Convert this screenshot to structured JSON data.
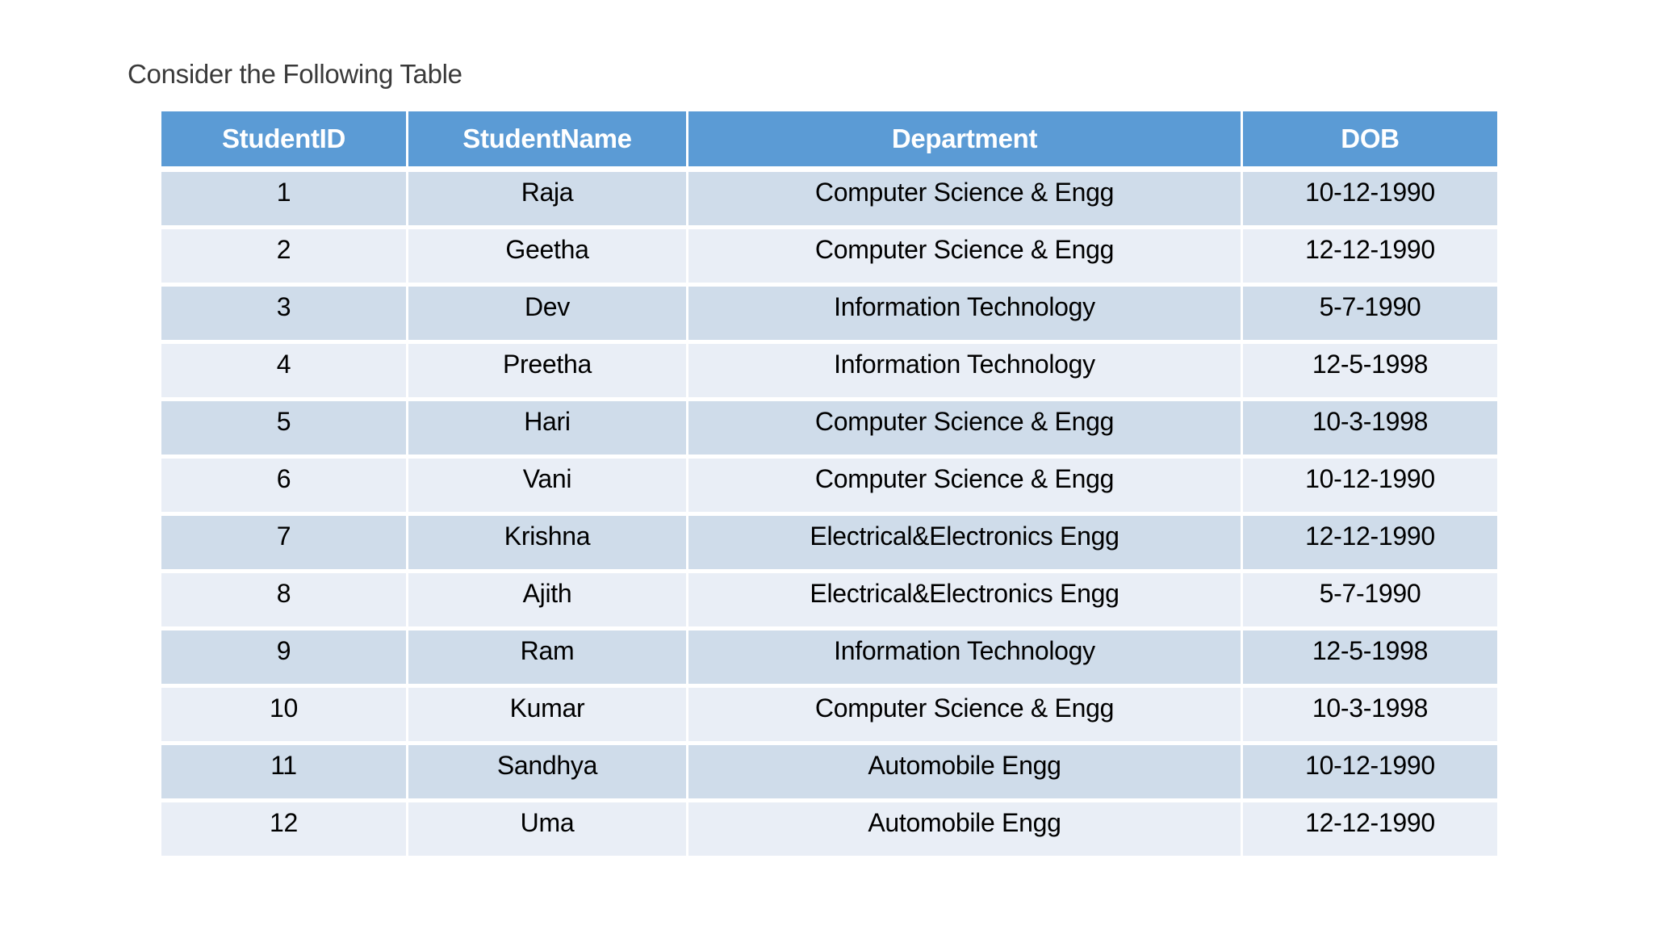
{
  "page": {
    "title": "Consider the Following Table",
    "background": "#ffffff"
  },
  "table": {
    "columns": [
      "StudentID",
      "StudentName",
      "Department",
      "DOB"
    ],
    "rows": [
      [
        "1",
        "Raja",
        "Computer Science & Engg",
        "10-12-1990"
      ],
      [
        "2",
        "Geetha",
        "Computer Science & Engg",
        "12-12-1990"
      ],
      [
        "3",
        "Dev",
        "Information Technology",
        "5-7-1990"
      ],
      [
        "4",
        "Preetha",
        "Information Technology",
        "12-5-1998"
      ],
      [
        "5",
        "Hari",
        "Computer Science & Engg",
        "10-3-1998"
      ],
      [
        "6",
        "Vani",
        "Computer Science & Engg",
        "10-12-1990"
      ],
      [
        "7",
        "Krishna",
        "Electrical&Electronics Engg",
        "12-12-1990"
      ],
      [
        "8",
        "Ajith",
        "Electrical&Electronics Engg",
        "5-7-1990"
      ],
      [
        "9",
        "Ram",
        "Information Technology",
        "12-5-1998"
      ],
      [
        "10",
        "Kumar",
        "Computer Science & Engg",
        "10-3-1998"
      ],
      [
        "11",
        "Sandhya",
        "Automobile Engg",
        "10-12-1990"
      ],
      [
        "12",
        "Uma",
        "Automobile Engg",
        "12-12-1990"
      ]
    ],
    "colors": {
      "header_bg": "#5b9bd5",
      "header_text": "#ffffff",
      "band_dark": "#cfdcea",
      "band_light": "#e9eef6",
      "body_text": "#000000"
    }
  }
}
